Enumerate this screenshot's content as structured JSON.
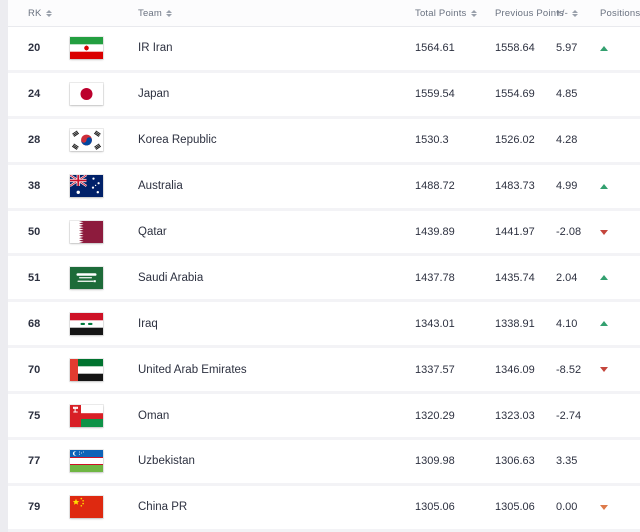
{
  "header": {
    "columns": [
      {
        "key": "rk",
        "label": "RK",
        "sortable": true
      },
      {
        "key": "flag",
        "label": "",
        "sortable": false
      },
      {
        "key": "team",
        "label": "Team",
        "sortable": true
      },
      {
        "key": "total",
        "label": "Total Points",
        "sortable": true
      },
      {
        "key": "previous",
        "label": "Previous Points",
        "sortable": false
      },
      {
        "key": "change",
        "label": "+/-",
        "sortable": true
      },
      {
        "key": "positions",
        "label": "Positions",
        "sortable": false
      }
    ]
  },
  "rows": [
    {
      "rk": "20",
      "team": "IR Iran",
      "flag": "iran",
      "total": "1564.61",
      "previous": "1558.64",
      "change": "5.97",
      "position": "up"
    },
    {
      "rk": "24",
      "team": "Japan",
      "flag": "japan",
      "total": "1559.54",
      "previous": "1554.69",
      "change": "4.85",
      "position": ""
    },
    {
      "rk": "28",
      "team": "Korea Republic",
      "flag": "korea",
      "total": "1530.3",
      "previous": "1526.02",
      "change": "4.28",
      "position": ""
    },
    {
      "rk": "38",
      "team": "Australia",
      "flag": "australia",
      "total": "1488.72",
      "previous": "1483.73",
      "change": "4.99",
      "position": "up"
    },
    {
      "rk": "50",
      "team": "Qatar",
      "flag": "qatar",
      "total": "1439.89",
      "previous": "1441.97",
      "change": "-2.08",
      "position": "down"
    },
    {
      "rk": "51",
      "team": "Saudi Arabia",
      "flag": "saudi",
      "total": "1437.78",
      "previous": "1435.74",
      "change": "2.04",
      "position": "up"
    },
    {
      "rk": "68",
      "team": "Iraq",
      "flag": "iraq",
      "total": "1343.01",
      "previous": "1338.91",
      "change": "4.10",
      "position": "up"
    },
    {
      "rk": "70",
      "team": "United Arab Emirates",
      "flag": "uae",
      "total": "1337.57",
      "previous": "1346.09",
      "change": "-8.52",
      "position": "down"
    },
    {
      "rk": "75",
      "team": "Oman",
      "flag": "oman",
      "total": "1320.29",
      "previous": "1323.03",
      "change": "-2.74",
      "position": ""
    },
    {
      "rk": "77",
      "team": "Uzbekistan",
      "flag": "uzbekistan",
      "total": "1309.98",
      "previous": "1306.63",
      "change": "3.35",
      "position": ""
    },
    {
      "rk": "79",
      "team": "China PR",
      "flag": "china",
      "total": "1305.06",
      "previous": "1305.06",
      "change": "0.00",
      "position": "down-zero"
    }
  ],
  "colors": {
    "up": "#33a06f",
    "down": "#c4453c",
    "down_zero": "#dd7a4a",
    "header_text": "#6a7280",
    "row_text": "#2d3140"
  }
}
